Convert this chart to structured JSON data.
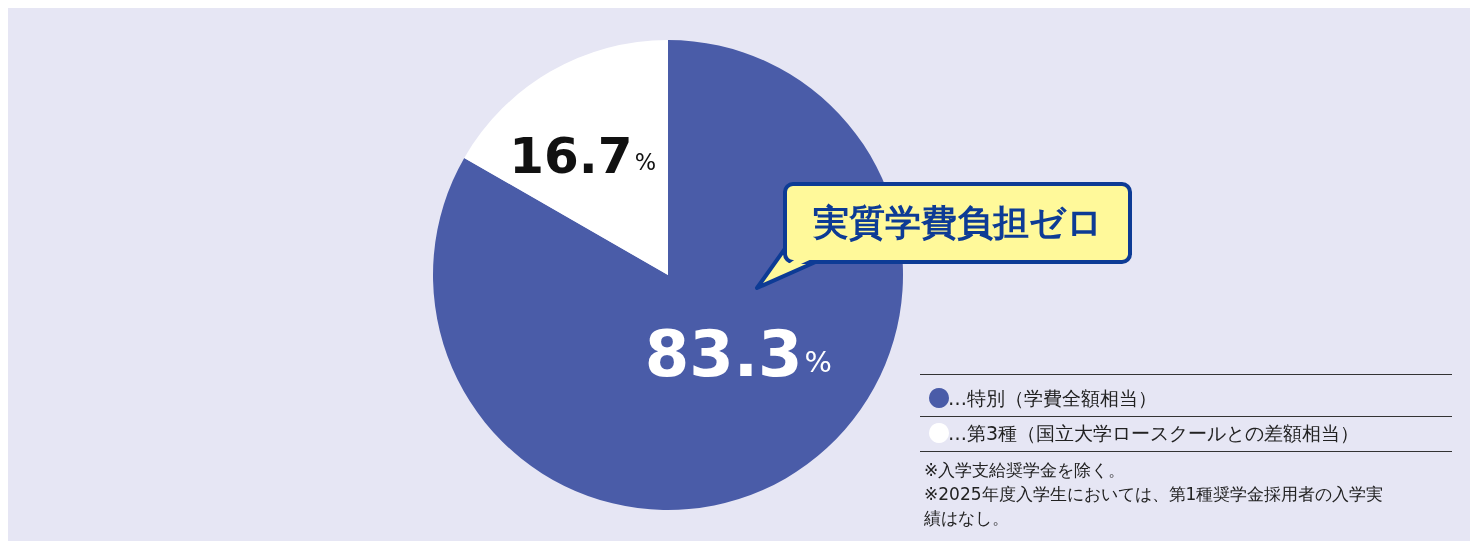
{
  "chart_data": {
    "type": "pie",
    "categories": [
      "…特別（学費全額相当）",
      "…第3種（国立大学ロースクールとの差額相当）"
    ],
    "values": [
      83.3,
      16.7
    ],
    "colors": [
      "#4a5ca8",
      "#ffffff"
    ],
    "value_labels": [
      "83.3%",
      "16.7%"
    ],
    "legend": "bottom right",
    "annotations": [
      "実質学費負担ゼロ",
      "※入学支給奨学金を除く。",
      "※2025年度入学生においては、第1種奨学金採用者の入学実績はなし。"
    ]
  }
}
